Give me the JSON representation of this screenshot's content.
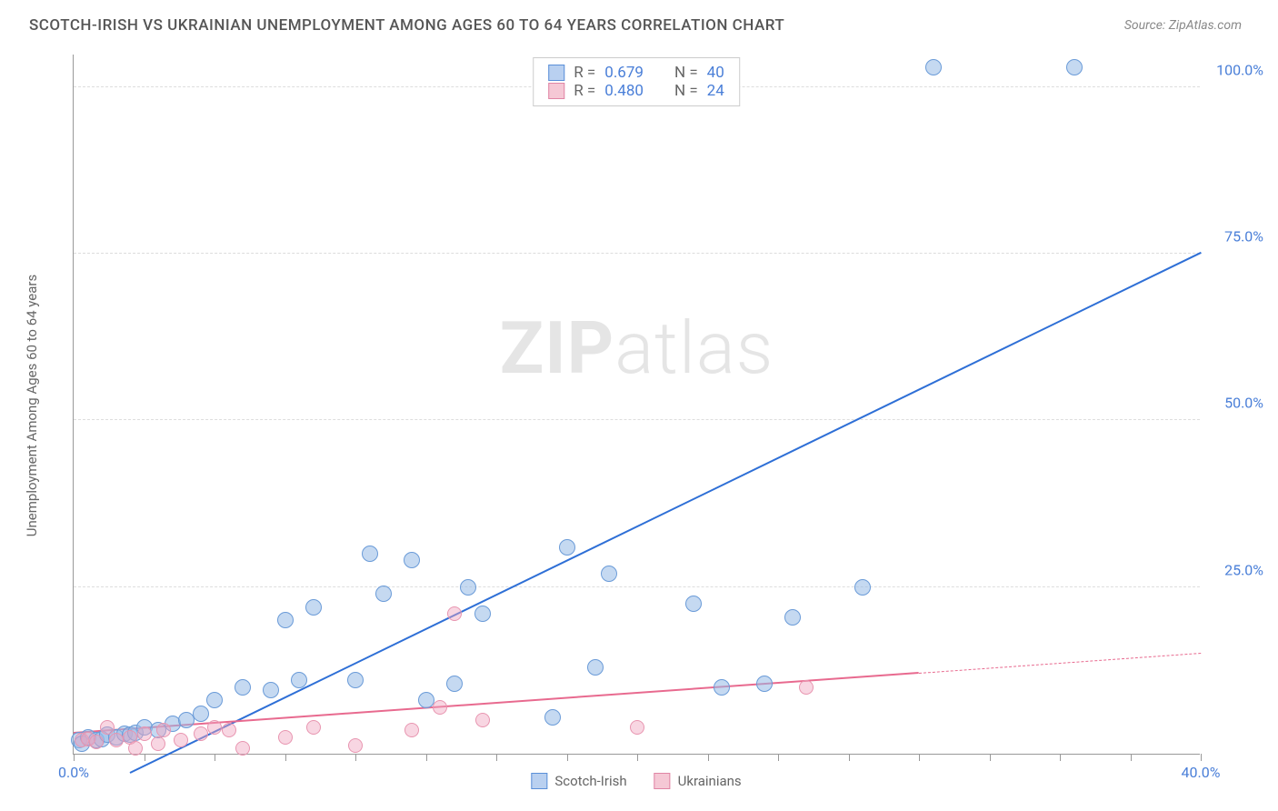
{
  "title": "SCOTCH-IRISH VS UKRAINIAN UNEMPLOYMENT AMONG AGES 60 TO 64 YEARS CORRELATION CHART",
  "source": "Source: ZipAtlas.com",
  "watermark_bold": "ZIP",
  "watermark_light": "atlas",
  "chart": {
    "type": "scatter",
    "xlim": [
      0,
      40
    ],
    "ylim": [
      0,
      105
    ],
    "x_ticks": [
      0,
      2.5,
      5,
      7.5,
      10,
      12.5,
      15,
      17.5,
      20,
      22.5,
      25,
      27.5,
      30,
      32.5,
      35,
      37.5,
      40
    ],
    "x_tick_labels": {
      "0": "0.0%",
      "40": "40.0%"
    },
    "y_gridlines": [
      25,
      50,
      75,
      100
    ],
    "y_tick_labels": {
      "25": "25.0%",
      "50": "50.0%",
      "75": "75.0%",
      "100": "100.0%"
    },
    "y_axis_label": "Unemployment Among Ages 60 to 64 years",
    "background_color": "#ffffff",
    "grid_color": "#dddddd",
    "axis_color": "#999999",
    "tick_label_color": "#4a7fd8"
  },
  "stats": [
    {
      "swatch_fill": "#b9d0f0",
      "swatch_border": "#5a8fd8",
      "r_label": "R =",
      "r": "0.679",
      "n_label": "N =",
      "n": "40"
    },
    {
      "swatch_fill": "#f5c8d5",
      "swatch_border": "#e085a5",
      "r_label": "R =",
      "r": "0.480",
      "n_label": "N =",
      "n": "24"
    }
  ],
  "legend": [
    {
      "label": "Scotch-Irish",
      "fill": "#b9d0f0",
      "border": "#5a8fd8"
    },
    {
      "label": "Ukrainians",
      "fill": "#f5c8d5",
      "border": "#e085a5"
    }
  ],
  "series": [
    {
      "name": "Scotch-Irish",
      "marker_fill": "rgba(150,185,230,0.55)",
      "marker_border": "#6a9bd8",
      "marker_r": 9,
      "points": [
        [
          0.2,
          2
        ],
        [
          0.3,
          1.5
        ],
        [
          0.5,
          2.5
        ],
        [
          0.8,
          2
        ],
        [
          1,
          2.2
        ],
        [
          1.2,
          2.8
        ],
        [
          1.5,
          2.5
        ],
        [
          1.8,
          3
        ],
        [
          2,
          2.8
        ],
        [
          2.2,
          3.2
        ],
        [
          2.5,
          4
        ],
        [
          3,
          3.5
        ],
        [
          3.5,
          4.5
        ],
        [
          4,
          5
        ],
        [
          4.5,
          6
        ],
        [
          5,
          8
        ],
        [
          6,
          10
        ],
        [
          7,
          9.5
        ],
        [
          7.5,
          20
        ],
        [
          8,
          11
        ],
        [
          8.5,
          22
        ],
        [
          10,
          11
        ],
        [
          10.5,
          30
        ],
        [
          11,
          24
        ],
        [
          12,
          29
        ],
        [
          12.5,
          8
        ],
        [
          13.5,
          10.5
        ],
        [
          14,
          25
        ],
        [
          14.5,
          21
        ],
        [
          17,
          5.5
        ],
        [
          17.5,
          31
        ],
        [
          18.5,
          13
        ],
        [
          19,
          27
        ],
        [
          22,
          22.5
        ],
        [
          23,
          10
        ],
        [
          24.5,
          10.5
        ],
        [
          25.5,
          20.5
        ],
        [
          28,
          25
        ],
        [
          30.5,
          103
        ],
        [
          35.5,
          103
        ]
      ],
      "trend": {
        "x1": 2,
        "y1": -3,
        "x2": 40,
        "y2": 75,
        "color": "#2e6fd6",
        "width": 2,
        "dash": false
      }
    },
    {
      "name": "Ukrainians",
      "marker_fill": "rgba(240,165,190,0.45)",
      "marker_border": "#e895b0",
      "marker_r": 8,
      "points": [
        [
          0.3,
          2
        ],
        [
          0.5,
          2.2
        ],
        [
          0.8,
          1.8
        ],
        [
          1.2,
          4
        ],
        [
          1.5,
          2
        ],
        [
          2,
          2.5
        ],
        [
          2.2,
          0.8
        ],
        [
          2.5,
          3
        ],
        [
          3,
          1.5
        ],
        [
          3.2,
          3.5
        ],
        [
          3.8,
          2
        ],
        [
          4.5,
          3
        ],
        [
          5,
          4
        ],
        [
          5.5,
          3.5
        ],
        [
          6,
          0.8
        ],
        [
          7.5,
          2.5
        ],
        [
          8.5,
          4
        ],
        [
          10,
          1.2
        ],
        [
          12,
          3.5
        ],
        [
          13,
          7
        ],
        [
          13.5,
          21
        ],
        [
          14.5,
          5
        ],
        [
          20,
          4
        ],
        [
          26,
          10
        ]
      ],
      "trend": {
        "x1": 0,
        "y1": 3,
        "x2": 30,
        "y2": 12,
        "color": "#e86a8f",
        "width": 2,
        "dash": false
      },
      "trend_ext": {
        "x1": 30,
        "y1": 12,
        "x2": 40,
        "y2": 15,
        "color": "#e86a8f",
        "width": 1,
        "dash": true
      }
    }
  ]
}
